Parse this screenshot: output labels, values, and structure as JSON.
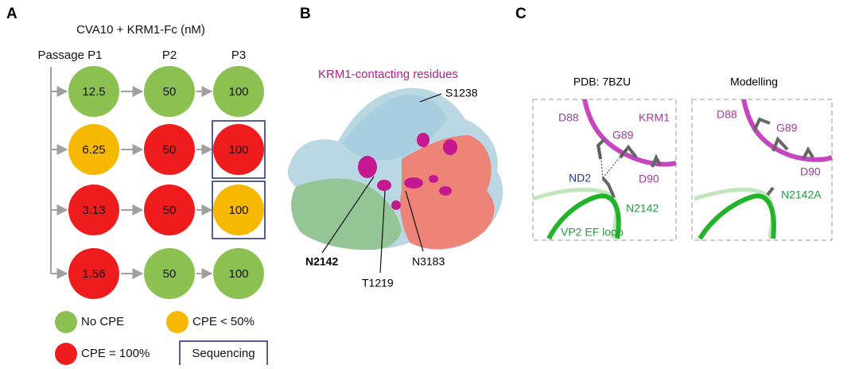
{
  "panel_a": {
    "label": "A",
    "title": "CVA10 + KRM1-Fc (nM)",
    "columns": [
      "Passage P1",
      "P2",
      "P3"
    ],
    "rows": [
      [
        {
          "text": "12.5",
          "color": "#8cc152"
        },
        {
          "text": "50",
          "color": "#8cc152"
        },
        {
          "text": "100",
          "color": "#8cc152"
        }
      ],
      [
        {
          "text": "6.25",
          "color": "#f6b800"
        },
        {
          "text": "50",
          "color": "#ee1c1c"
        },
        {
          "text": "100",
          "color": "#ee1c1c",
          "sequenced": true
        }
      ],
      [
        {
          "text": "3.13",
          "color": "#ee1c1c"
        },
        {
          "text": "50",
          "color": "#ee1c1c"
        },
        {
          "text": "100",
          "color": "#f6b800",
          "sequenced": true
        }
      ],
      [
        {
          "text": "1.56",
          "color": "#ee1c1c"
        },
        {
          "text": "50",
          "color": "#8cc152"
        },
        {
          "text": "100",
          "color": "#8cc152"
        }
      ]
    ],
    "legend": [
      {
        "label": "No CPE",
        "color": "#8cc152"
      },
      {
        "label": "CPE < 50%",
        "color": "#f6b800"
      },
      {
        "label": "CPE = 100%",
        "color": "#ee1c1c"
      },
      {
        "label": "Sequencing",
        "color": "#1f2a6e",
        "marker": "box"
      }
    ]
  },
  "panel_b": {
    "label": "B",
    "title": "KRM1-contacting residues",
    "residues": {
      "s1238": "S1238",
      "n2142": "N2142",
      "t1219": "T1219",
      "n3183": "N3183"
    }
  },
  "panel_c": {
    "label": "C",
    "left": {
      "title": "PDB: 7BZU",
      "labels": {
        "d88": "D88",
        "g89": "G89",
        "krm1": "KRM1",
        "nd2": "ND2",
        "d90": "D90",
        "n2142": "N2142",
        "loop": "VP2 EF loop"
      }
    },
    "right": {
      "title": "Modelling",
      "labels": {
        "d88": "D88",
        "g89": "G89",
        "d90": "D90",
        "n2142a": "N2142A"
      }
    }
  }
}
